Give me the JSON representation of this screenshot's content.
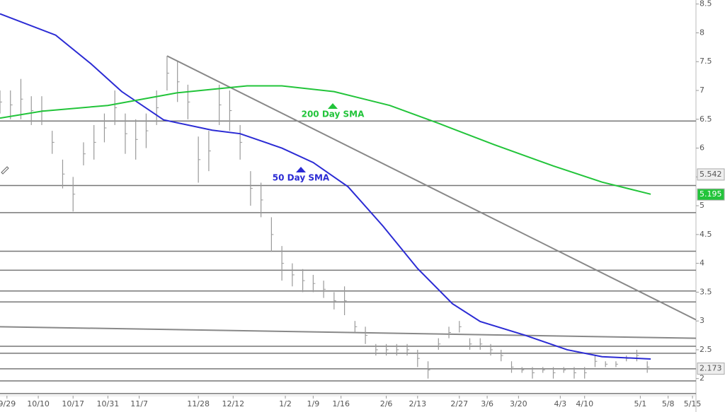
{
  "chart_data": {
    "type": "ohlc",
    "xlim": [
      0,
      200
    ],
    "ylim": [
      1.42,
      8.57
    ],
    "yticks": [
      2,
      2.5,
      3,
      3.5,
      4,
      4.5,
      5,
      5.5,
      6,
      6.5,
      7,
      7.5,
      8,
      8.5
    ],
    "xticks": [
      {
        "value": 2,
        "label": "9/29"
      },
      {
        "value": 11,
        "label": "10/10"
      },
      {
        "value": 21,
        "label": "10/17"
      },
      {
        "value": 31,
        "label": "10/31"
      },
      {
        "value": 40,
        "label": "11/7"
      },
      {
        "value": 57,
        "label": "11/28"
      },
      {
        "value": 67,
        "label": "12/12"
      },
      {
        "value": 82,
        "label": "1/2"
      },
      {
        "value": 90,
        "label": "1/9"
      },
      {
        "value": 98,
        "label": "1/16"
      },
      {
        "value": 111,
        "label": "2/6"
      },
      {
        "value": 120,
        "label": "2/13"
      },
      {
        "value": 132,
        "label": "2/27"
      },
      {
        "value": 140,
        "label": "3/6"
      },
      {
        "value": 149,
        "label": "3/20"
      },
      {
        "value": 161,
        "label": "4/3"
      },
      {
        "value": 168,
        "label": "4/10"
      },
      {
        "value": 184,
        "label": "5/1"
      },
      {
        "value": 192,
        "label": "5/8"
      },
      {
        "value": 199,
        "label": "5/15"
      }
    ],
    "bars": {
      "color": "#999999",
      "x": [
        0,
        3,
        6,
        9,
        12,
        15,
        18,
        21,
        24,
        27,
        30,
        33,
        36,
        39,
        42,
        45,
        48,
        51,
        54,
        57,
        60,
        63,
        66,
        69,
        72,
        75,
        78,
        81,
        84,
        87,
        90,
        93,
        96,
        99,
        102,
        105,
        108,
        111,
        114,
        117,
        120,
        123,
        126,
        129,
        132,
        135,
        138,
        141,
        144,
        147,
        150,
        153,
        156,
        159,
        162,
        165,
        168,
        171,
        174,
        177,
        180,
        183,
        186
      ],
      "high": [
        7.0,
        7.0,
        7.2,
        6.9,
        6.9,
        6.3,
        5.8,
        5.5,
        6.1,
        6.4,
        6.6,
        7.0,
        6.6,
        6.5,
        6.6,
        7.0,
        7.6,
        7.5,
        7.1,
        6.2,
        6.3,
        7.1,
        7.0,
        6.4,
        5.6,
        5.4,
        4.8,
        4.3,
        4.0,
        3.9,
        3.8,
        3.7,
        3.5,
        3.6,
        3.0,
        2.9,
        2.6,
        2.6,
        2.6,
        2.6,
        2.5,
        2.3,
        2.7,
        2.9,
        3.0,
        2.7,
        2.7,
        2.6,
        2.5,
        2.3,
        2.2,
        2.2,
        2.2,
        2.2,
        2.2,
        2.2,
        2.2,
        2.4,
        2.3,
        2.3,
        2.4,
        2.5,
        2.3
      ],
      "low": [
        6.6,
        6.5,
        6.5,
        6.4,
        6.4,
        5.9,
        5.3,
        4.9,
        5.7,
        5.8,
        6.1,
        6.4,
        5.9,
        5.8,
        6.0,
        6.4,
        7.0,
        6.8,
        6.5,
        5.4,
        5.6,
        6.4,
        6.3,
        5.8,
        5.0,
        4.8,
        4.2,
        3.7,
        3.6,
        3.5,
        3.5,
        3.4,
        3.2,
        3.1,
        2.8,
        2.6,
        2.4,
        2.4,
        2.4,
        2.4,
        2.2,
        2.0,
        2.5,
        2.7,
        2.8,
        2.5,
        2.5,
        2.4,
        2.3,
        2.1,
        2.1,
        2.0,
        2.1,
        2.0,
        2.1,
        2.0,
        2.0,
        2.2,
        2.2,
        2.2,
        2.3,
        2.3,
        2.1
      ]
    },
    "series": [
      {
        "name": "50 Day SMA",
        "color": "#2b2bd4",
        "x": [
          0,
          16,
          26,
          35,
          47,
          61,
          69,
          81,
          90,
          100,
          110,
          120,
          130,
          138,
          151,
          163,
          173,
          187
        ],
        "values": [
          8.33,
          7.96,
          7.47,
          6.98,
          6.49,
          6.31,
          6.25,
          6.0,
          5.75,
          5.33,
          4.65,
          3.91,
          3.3,
          2.99,
          2.75,
          2.5,
          2.38,
          2.34
        ]
      },
      {
        "name": "200 Day SMA",
        "color": "#22c43a",
        "x": [
          0,
          12,
          31,
          51,
          71,
          81,
          96,
          112,
          126,
          142,
          159,
          173,
          187
        ],
        "values": [
          6.52,
          6.64,
          6.74,
          6.96,
          7.08,
          7.08,
          6.98,
          6.74,
          6.43,
          6.06,
          5.69,
          5.41,
          5.2
        ]
      }
    ],
    "levels": [
      6.47,
      5.35,
      4.88,
      4.21,
      3.88,
      3.52,
      3.33,
      2.56,
      2.44,
      2.17,
      1.96,
      1.74
    ],
    "trendlines": [
      {
        "x": [
          48,
          200
        ],
        "values": [
          7.6,
          3.02
        ]
      },
      {
        "x": [
          0,
          200
        ],
        "values": [
          2.9,
          2.7
        ]
      }
    ],
    "price_labels": [
      {
        "value": 5.542,
        "label": "5.542",
        "color": "#eeeeee"
      },
      {
        "value": 5.195,
        "label": "5.195",
        "color": "#22c43a"
      },
      {
        "value": 2.173,
        "label": "2.173",
        "color": "#eeeeee"
      }
    ]
  }
}
